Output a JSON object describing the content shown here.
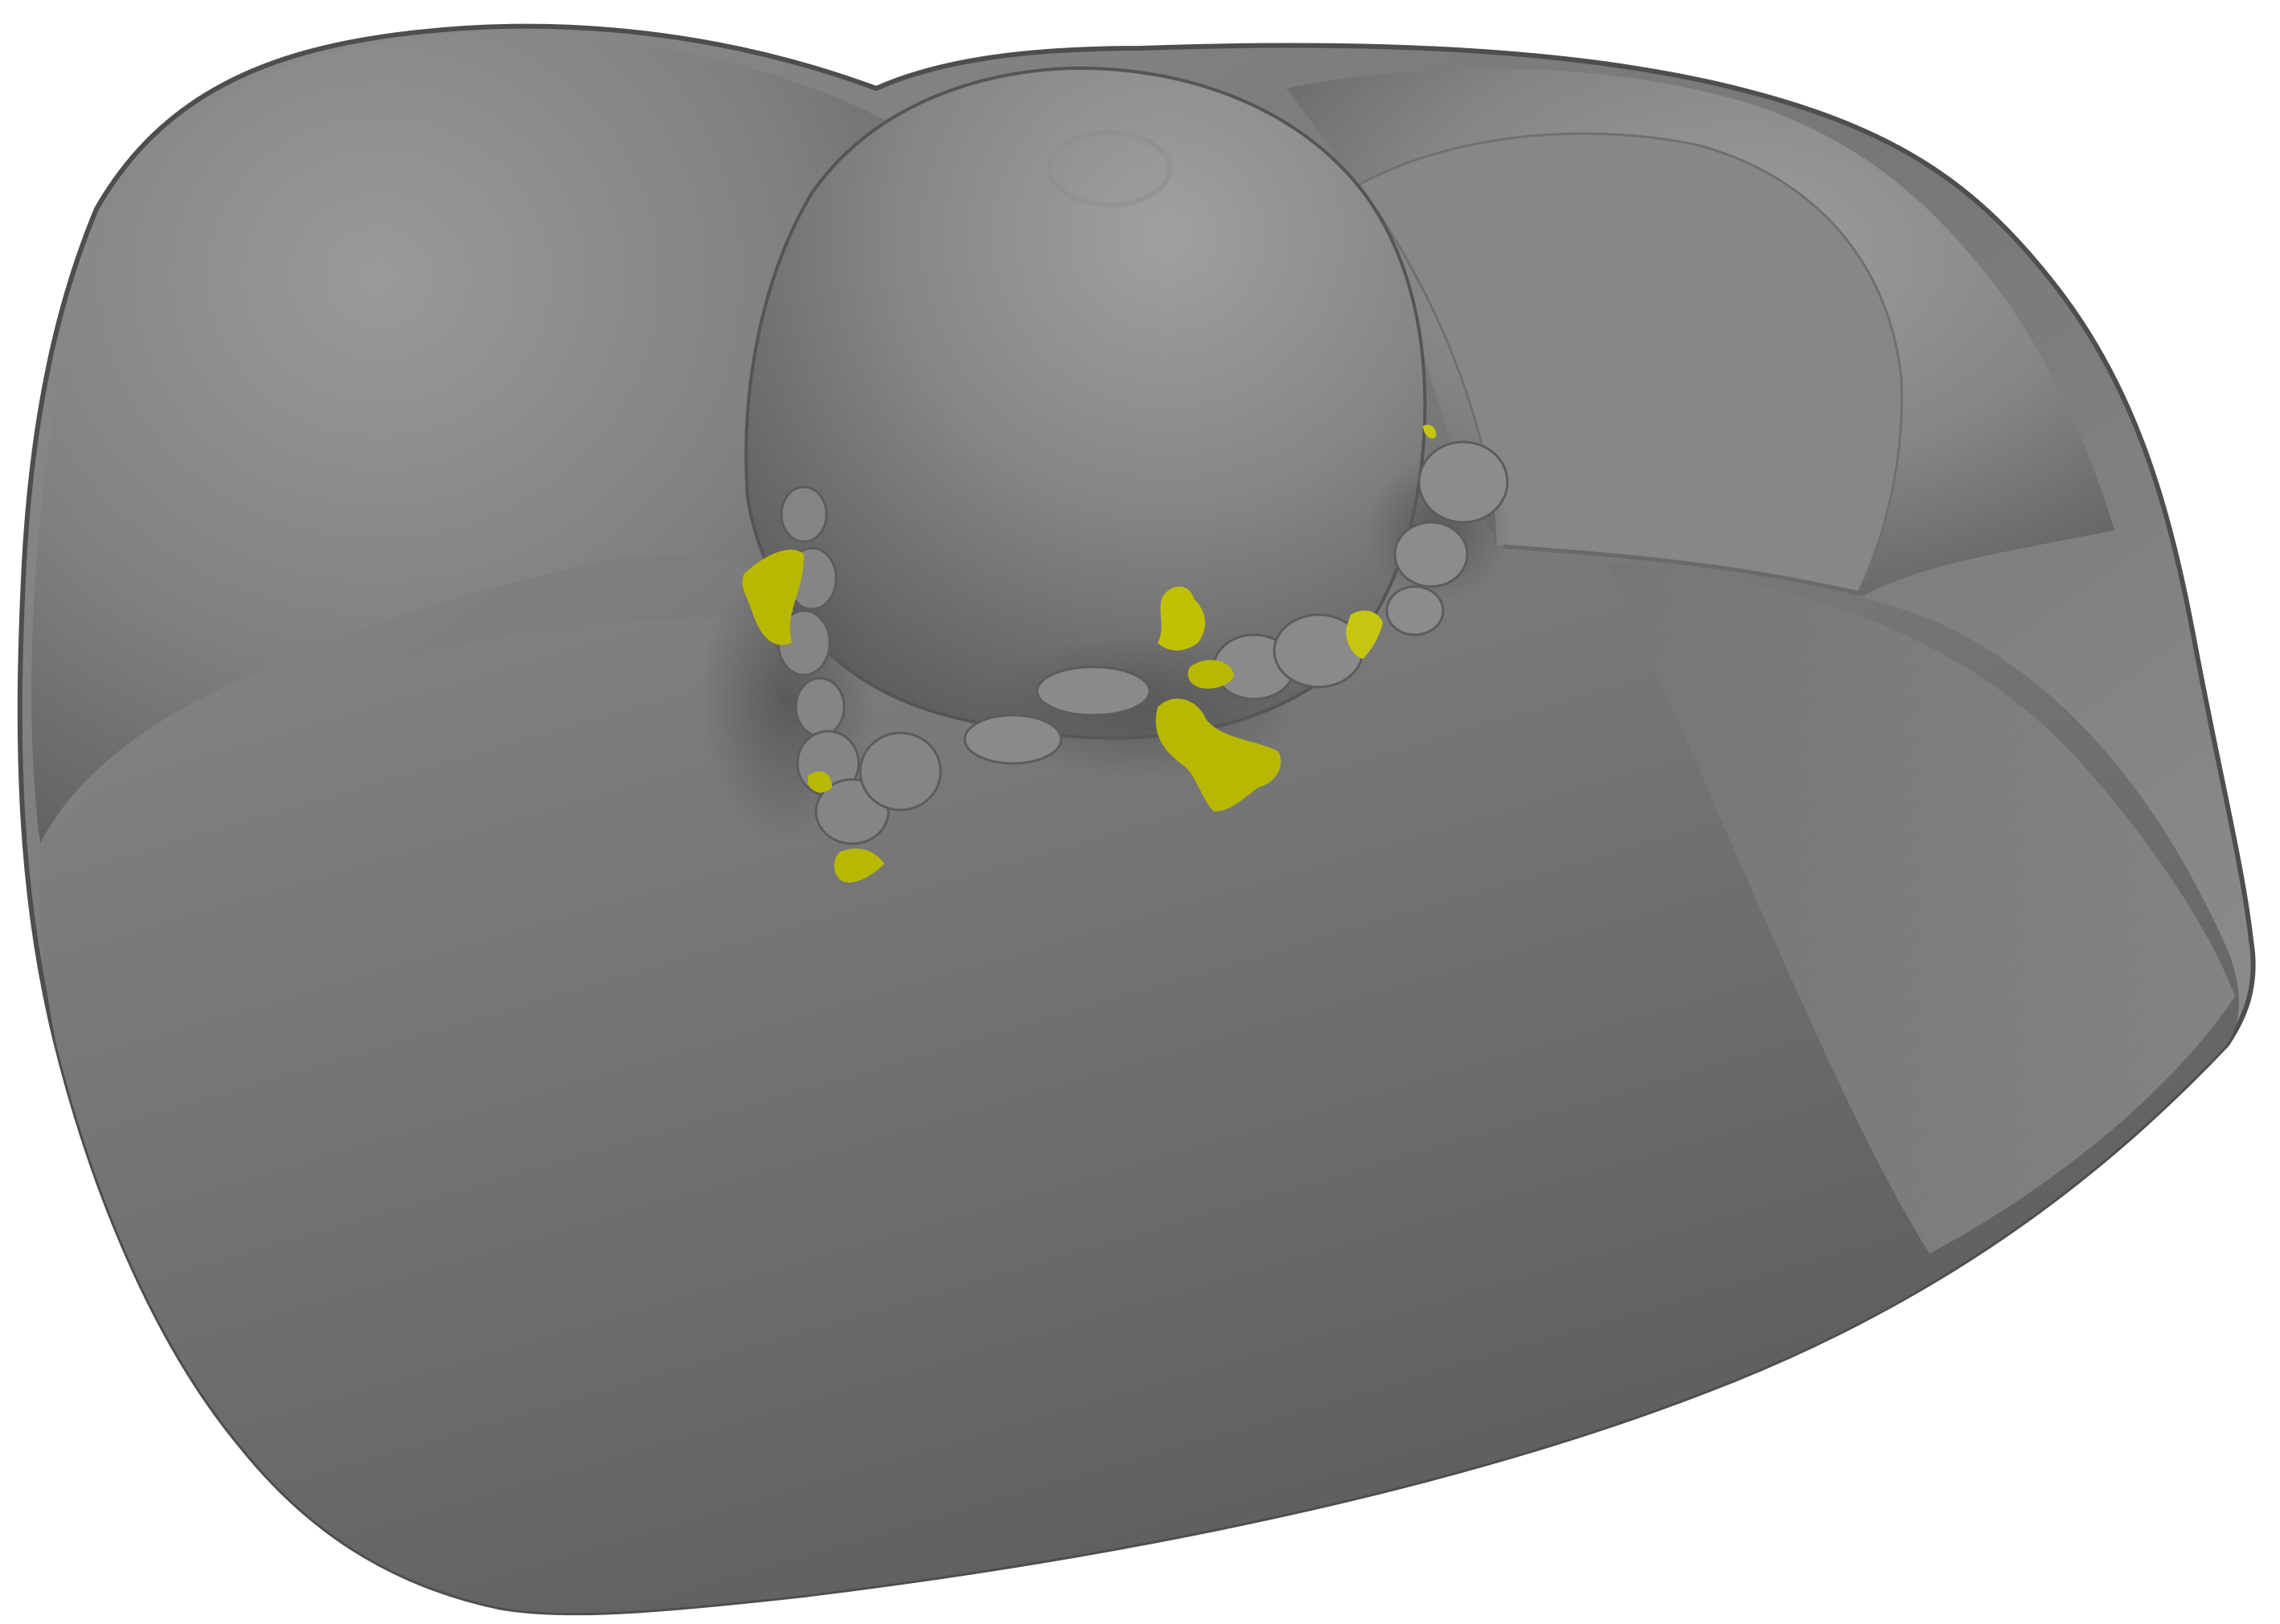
{
  "scene": {
    "background": "#ffffff",
    "surface_base": "#7d7d7d",
    "surface_light": "#a3a3a3",
    "surface_shadow": "#4a4a4a",
    "highlight_color": "#b8b800",
    "highlight_color_light": "#d2d218"
  }
}
